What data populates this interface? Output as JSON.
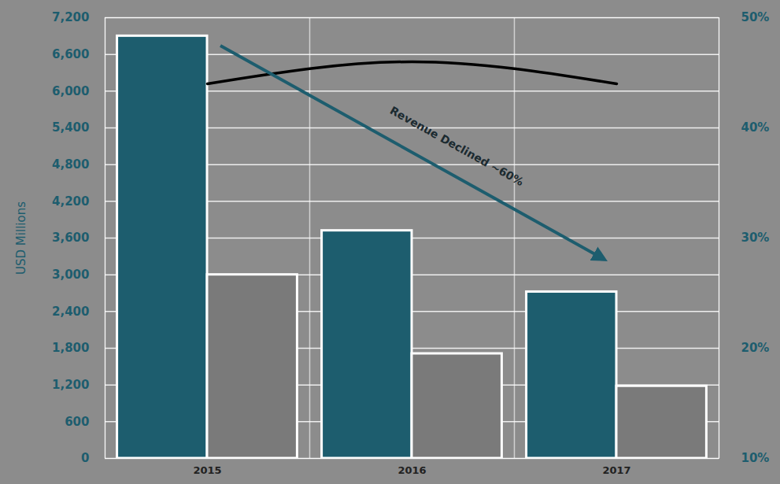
{
  "chart_data": {
    "type": "bar",
    "categories": [
      "2015",
      "2016",
      "2017"
    ],
    "ylabel": "USD Millions",
    "annotations": [
      "Revenue Declined ~60%"
    ],
    "series": [
      {
        "color": "#1d5d6e",
        "values": [
          6900,
          3720,
          2720
        ]
      },
      {
        "color": "#7a7a7a",
        "values": [
          3000,
          1710,
          1180
        ]
      },
      {
        "type": "line",
        "axis": "y2",
        "color": "#000000",
        "line_style": "solid",
        "values": [
          44,
          46,
          44
        ]
      }
    ],
    "ylim": [
      0,
      7200
    ],
    "yticks": [
      0,
      600,
      {
        "value": 1200,
        "label": "1,200"
      },
      {
        "value": 1800,
        "label": "1,800"
      },
      {
        "value": 2400,
        "label": "2,400"
      },
      {
        "value": 3000,
        "label": "3,000"
      },
      {
        "value": 3600,
        "label": "3,600"
      },
      {
        "value": 4200,
        "label": "4,200"
      },
      {
        "value": 4800,
        "label": "4,800"
      },
      {
        "value": 5400,
        "label": "5,400"
      },
      {
        "value": 6000,
        "label": "6,000"
      },
      {
        "value": 6600,
        "label": "6,600"
      },
      {
        "value": 7200,
        "label": "7,200"
      }
    ],
    "y2lim": [
      10,
      50
    ],
    "y2ticks": [
      {
        "value": 10,
        "label": "10%"
      },
      {
        "value": 20,
        "label": "20%"
      },
      {
        "value": 30,
        "label": "30%"
      },
      {
        "value": 40,
        "label": "40%"
      },
      {
        "value": 50,
        "label": "50%"
      }
    ],
    "grid": true
  }
}
